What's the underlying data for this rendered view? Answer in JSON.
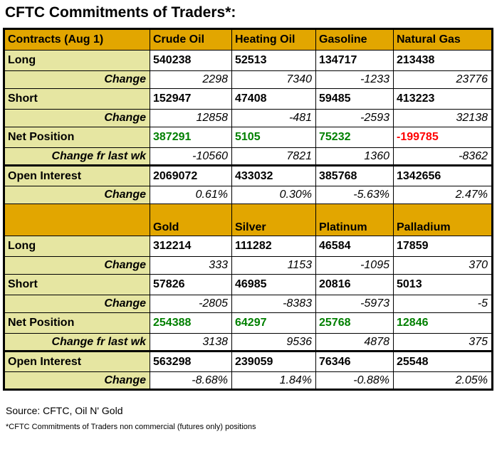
{
  "title": "CFTC Commitments of Traders*:",
  "colors": {
    "header_bg": "#e2a600",
    "label_bg": "#e6e6a2",
    "positive": "#008000",
    "negative": "#ff0000",
    "border": "#000000"
  },
  "table": {
    "sections": [
      {
        "header_label": "Contracts (Aug 1)",
        "columns": [
          "Crude Oil",
          "Heating Oil",
          "Gasoline",
          "Natural Gas"
        ],
        "rows": [
          {
            "label": "Long",
            "type": "main",
            "values": [
              "540238",
              "52513",
              "134717",
              "213438"
            ]
          },
          {
            "label": "Change",
            "type": "change",
            "values": [
              "2298",
              "7340",
              "-1233",
              "23776"
            ]
          },
          {
            "label": "Short",
            "type": "main",
            "values": [
              "152947",
              "47408",
              "59485",
              "413223"
            ]
          },
          {
            "label": "Change",
            "type": "change",
            "values": [
              "12858",
              "-481",
              "-2593",
              "32138"
            ]
          },
          {
            "label": "Net Position",
            "type": "net",
            "values": [
              "387291",
              "5105",
              "75232",
              "-199785"
            ]
          },
          {
            "label": "Change fr last wk",
            "type": "change",
            "values": [
              "-10560",
              "7821",
              "1360",
              "-8362"
            ]
          },
          {
            "label": "Open Interest",
            "type": "main",
            "thick_top": true,
            "values": [
              "2069072",
              "433032",
              "385768",
              "1342656"
            ]
          },
          {
            "label": "Change",
            "type": "change",
            "values": [
              "0.61%",
              "0.30%",
              "-5.63%",
              "2.47%"
            ]
          }
        ]
      },
      {
        "header_label": "",
        "columns": [
          "Gold",
          "Silver",
          "Platinum",
          "Palladium"
        ],
        "rows": [
          {
            "label": "Long",
            "type": "main",
            "values": [
              "312214",
              "111282",
              "46584",
              "17859"
            ]
          },
          {
            "label": "Change",
            "type": "change",
            "values": [
              "333",
              "1153",
              "-1095",
              "370"
            ]
          },
          {
            "label": "Short",
            "type": "main",
            "values": [
              "57826",
              "46985",
              "20816",
              "5013"
            ]
          },
          {
            "label": "Change",
            "type": "change",
            "values": [
              "-2805",
              "-8383",
              "-5973",
              "-5"
            ]
          },
          {
            "label": "Net Position",
            "type": "net",
            "values": [
              "254388",
              "64297",
              "25768",
              "12846"
            ]
          },
          {
            "label": "Change fr last wk",
            "type": "change",
            "values": [
              "3138",
              "9536",
              "4878",
              "375"
            ]
          },
          {
            "label": "Open Interest",
            "type": "main",
            "thick_top": true,
            "values": [
              "563298",
              "239059",
              "76346",
              "25548"
            ]
          },
          {
            "label": "Change",
            "type": "change",
            "values": [
              "-8.68%",
              "1.84%",
              "-0.88%",
              "2.05%"
            ]
          }
        ]
      }
    ]
  },
  "footer": {
    "source": "Source: CFTC, Oil N' Gold",
    "footnote": "*CFTC Commitments of Traders non commercial (futures only) positions"
  }
}
